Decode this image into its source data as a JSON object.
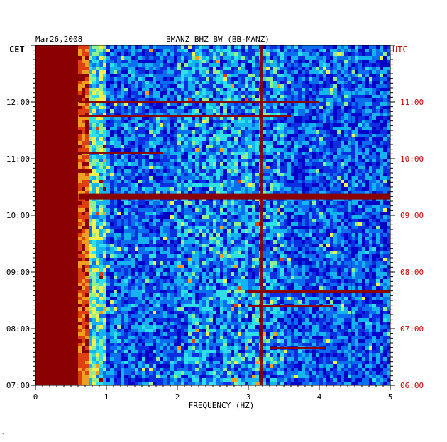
{
  "chart_data": {
    "type": "heatmap",
    "date": "Mar26,2008",
    "title": "BMANZ BHZ BW (BB-MANZ)",
    "xlabel": "FREQUENCY (HZ)",
    "left_timezone": "CET",
    "right_timezone": "UTC",
    "xlim": [
      0,
      5
    ],
    "x_ticks": [
      {
        "value": 0,
        "label": "0"
      },
      {
        "value": 1,
        "label": "1"
      },
      {
        "value": 2,
        "label": "2"
      },
      {
        "value": 3,
        "label": "3"
      },
      {
        "value": 4,
        "label": "4"
      },
      {
        "value": 5,
        "label": "5"
      }
    ],
    "time_range_utc_hours": [
      6.0,
      12.0
    ],
    "left_ticks": [
      {
        "hour_utc": 6,
        "label": "07:00"
      },
      {
        "hour_utc": 7,
        "label": "08:00"
      },
      {
        "hour_utc": 8,
        "label": "09:00"
      },
      {
        "hour_utc": 9,
        "label": "10:00"
      },
      {
        "hour_utc": 10,
        "label": "11:00"
      },
      {
        "hour_utc": 11,
        "label": "12:00"
      }
    ],
    "right_ticks": [
      {
        "hour_utc": 6,
        "label": "06:00"
      },
      {
        "hour_utc": 7,
        "label": "07:00"
      },
      {
        "hour_utc": 8,
        "label": "08:00"
      },
      {
        "hour_utc": 9,
        "label": "09:00"
      },
      {
        "hour_utc": 10,
        "label": "10:00"
      },
      {
        "hour_utc": 11,
        "label": "11:00"
      }
    ],
    "features": {
      "saturated_band_hz": [
        0,
        0.62
      ],
      "vertical_lines_hz": [
        3.18,
        4.46
      ],
      "horizontal_events_utc": [
        {
          "hour": 9.33,
          "from_hz": 0.62,
          "to_hz": 5.0
        },
        {
          "hour": 10.75,
          "from_hz": 0.62,
          "to_hz": 3.6
        },
        {
          "hour": 10.1,
          "from_hz": 0.62,
          "to_hz": 1.8
        },
        {
          "hour": 11.0,
          "from_hz": 0.62,
          "to_hz": 4.0
        },
        {
          "hour": 7.65,
          "from_hz": 3.0,
          "to_hz": 5.0
        },
        {
          "hour": 7.4,
          "from_hz": 3.0,
          "to_hz": 4.2
        },
        {
          "hour": 6.65,
          "from_hz": 3.3,
          "to_hz": 4.1
        }
      ]
    },
    "colors": {
      "saturated": "#8b0000",
      "left_label": "#000000",
      "right_label": "#cc0000",
      "axis": "#000000"
    },
    "colorscale": [
      "#0000c8",
      "#0a2ee0",
      "#0a6ef0",
      "#14b4f0",
      "#30e0e8",
      "#90f090",
      "#f0f050",
      "#f0a020",
      "#e04010",
      "#8b0000"
    ]
  }
}
